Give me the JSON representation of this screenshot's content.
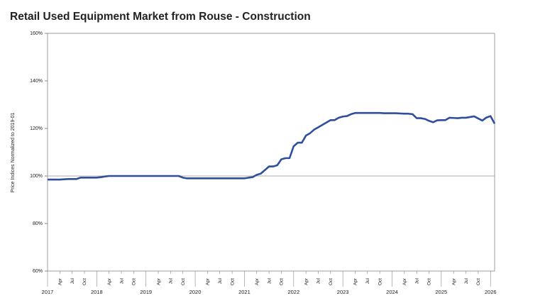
{
  "chart_data": {
    "type": "line",
    "title": "Retail Used Equipment Market from Rouse - Construction",
    "y_label": "Price Indices Normalized to 2019-01",
    "x": [
      "2017-01",
      "2017-02",
      "2017-03",
      "2017-04",
      "2017-05",
      "2017-06",
      "2017-07",
      "2017-08",
      "2017-09",
      "2017-10",
      "2017-11",
      "2017-12",
      "2018-01",
      "2018-02",
      "2018-03",
      "2018-04",
      "2018-05",
      "2018-06",
      "2018-07",
      "2018-08",
      "2018-09",
      "2018-10",
      "2018-11",
      "2018-12",
      "2019-01",
      "2019-02",
      "2019-03",
      "2019-04",
      "2019-05",
      "2019-06",
      "2019-07",
      "2019-08",
      "2019-09",
      "2019-10",
      "2019-11",
      "2019-12",
      "2020-01",
      "2020-02",
      "2020-03",
      "2020-04",
      "2020-05",
      "2020-06",
      "2020-07",
      "2020-08",
      "2020-09",
      "2020-10",
      "2020-11",
      "2020-12",
      "2021-01",
      "2021-02",
      "2021-03",
      "2021-04",
      "2021-05",
      "2021-06",
      "2021-07",
      "2021-08",
      "2021-09",
      "2021-10",
      "2021-11",
      "2021-12",
      "2022-01",
      "2022-02",
      "2022-03",
      "2022-04",
      "2022-05",
      "2022-06",
      "2022-07",
      "2022-08",
      "2022-09",
      "2022-10",
      "2022-11",
      "2022-12",
      "2023-01",
      "2023-02",
      "2023-03",
      "2023-04",
      "2023-05",
      "2023-06",
      "2023-07",
      "2023-08",
      "2023-09",
      "2023-10",
      "2023-11",
      "2023-12",
      "2024-01",
      "2024-02",
      "2024-03",
      "2024-04",
      "2024-05",
      "2024-06",
      "2024-07",
      "2024-08",
      "2024-09",
      "2024-10",
      "2024-11",
      "2024-12",
      "2025-01",
      "2025-02",
      "2025-03",
      "2025-04",
      "2025-05",
      "2025-06",
      "2025-07",
      "2025-08",
      "2025-09",
      "2025-10",
      "2025-11",
      "2025-12",
      "2026-01",
      "2026-02"
    ],
    "series": [
      {
        "name": "Construction",
        "color": "#2f4f9c",
        "values": [
          98.5,
          98.5,
          98.5,
          98.5,
          98.6,
          98.7,
          98.7,
          98.7,
          99.3,
          99.3,
          99.3,
          99.3,
          99.3,
          99.5,
          99.8,
          100,
          100,
          100,
          100,
          100,
          100,
          100,
          100,
          100,
          100,
          100,
          100,
          100,
          100,
          100,
          100,
          100,
          100,
          99.3,
          99,
          99,
          99,
          99,
          99,
          99,
          99,
          99,
          99,
          99,
          99,
          99,
          99,
          99,
          99,
          99.3,
          99.5,
          100.5,
          101,
          102.5,
          104,
          104,
          104.5,
          107,
          107.5,
          107.5,
          112.5,
          114,
          114,
          117,
          118,
          119.5,
          120.5,
          121.5,
          122.5,
          123.5,
          123.5,
          124.5,
          125,
          125.2,
          126,
          126.5,
          126.5,
          126.5,
          126.5,
          126.5,
          126.5,
          126.5,
          126.4,
          126.4,
          126.4,
          126.4,
          126.3,
          126.2,
          126.2,
          126,
          124.3,
          124.3,
          124,
          123.2,
          122.6,
          123.4,
          123.5,
          123.5,
          124.5,
          124.4,
          124.3,
          124.5,
          124.5,
          124.8,
          125.1,
          124.2,
          123.3,
          124.6,
          125.2,
          122
        ]
      }
    ],
    "xlim": [
      "2017-01",
      "2026-02"
    ],
    "xticks": [
      {
        "value": "2017-01",
        "label": "2017"
      },
      {
        "value": "2017-04",
        "label": "Apr"
      },
      {
        "value": "2017-07",
        "label": "Jul"
      },
      {
        "value": "2017-10",
        "label": "Oct"
      },
      {
        "value": "2018-01",
        "label": "2018"
      },
      {
        "value": "2018-04",
        "label": "Apr"
      },
      {
        "value": "2018-07",
        "label": "Jul"
      },
      {
        "value": "2018-10",
        "label": "Oct"
      },
      {
        "value": "2019-01",
        "label": "2019"
      },
      {
        "value": "2019-04",
        "label": "Apr"
      },
      {
        "value": "2019-07",
        "label": "Jul"
      },
      {
        "value": "2019-10",
        "label": "Oct"
      },
      {
        "value": "2020-01",
        "label": "2020"
      },
      {
        "value": "2020-04",
        "label": "Apr"
      },
      {
        "value": "2020-07",
        "label": "Jul"
      },
      {
        "value": "2020-10",
        "label": "Oct"
      },
      {
        "value": "2021-01",
        "label": "2021"
      },
      {
        "value": "2021-04",
        "label": "Apr"
      },
      {
        "value": "2021-07",
        "label": "Jul"
      },
      {
        "value": "2021-10",
        "label": "Oct"
      },
      {
        "value": "2022-01",
        "label": "2022"
      },
      {
        "value": "2022-04",
        "label": "Apr"
      },
      {
        "value": "2022-07",
        "label": "Jul"
      },
      {
        "value": "2022-10",
        "label": "Oct"
      },
      {
        "value": "2023-01",
        "label": "2023"
      },
      {
        "value": "2023-04",
        "label": "Apr"
      },
      {
        "value": "2023-07",
        "label": "Jul"
      },
      {
        "value": "2023-10",
        "label": "Oct"
      },
      {
        "value": "2024-01",
        "label": "2024"
      },
      {
        "value": "2024-04",
        "label": "Apr"
      },
      {
        "value": "2024-07",
        "label": "Jul"
      },
      {
        "value": "2024-10",
        "label": "Oct"
      },
      {
        "value": "2025-01",
        "label": "2025"
      },
      {
        "value": "2025-04",
        "label": "Apr"
      },
      {
        "value": "2025-07",
        "label": "Jul"
      },
      {
        "value": "2025-10",
        "label": "Oct"
      },
      {
        "value": "2026-01",
        "label": "2026"
      }
    ],
    "ylim": [
      60,
      160
    ],
    "yticks": [
      {
        "value": 60,
        "label": "60%"
      },
      {
        "value": 80,
        "label": "80%"
      },
      {
        "value": 100,
        "label": "100%"
      },
      {
        "value": 120,
        "label": "120%"
      },
      {
        "value": 140,
        "label": "140%"
      },
      {
        "value": 160,
        "label": "160%"
      }
    ],
    "reference_lines": [
      100
    ]
  }
}
